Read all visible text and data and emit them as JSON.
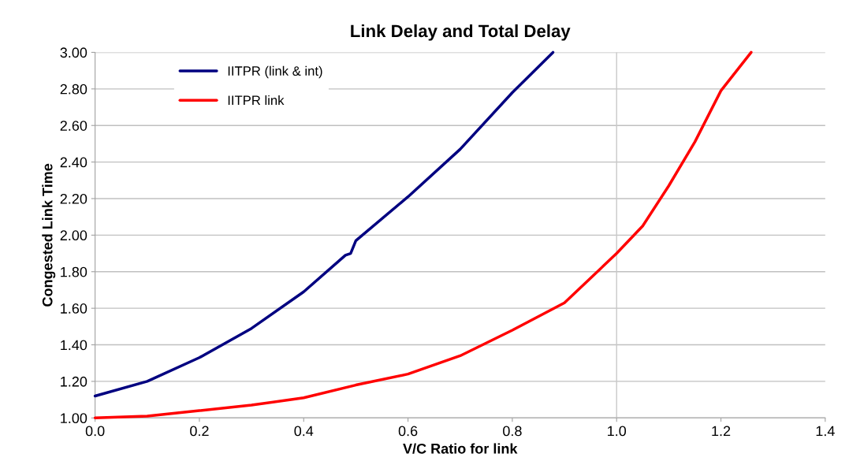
{
  "chart_data": {
    "type": "line",
    "title": "Link Delay and Total Delay",
    "xlabel": "V/C Ratio for link",
    "ylabel": "Congested Link Time",
    "xlim": [
      0,
      1.4
    ],
    "xticks": [
      {
        "value": 0,
        "label": "0.0"
      },
      0.2,
      0.4,
      0.6,
      0.8,
      {
        "value": 1.0,
        "label": "1.0"
      },
      1.2,
      1.4
    ],
    "ylim": [
      1,
      3
    ],
    "yticks": [
      {
        "value": 1,
        "label": "1.00"
      },
      {
        "value": 1.2,
        "label": "1.20"
      },
      {
        "value": 1.4,
        "label": "1.40"
      },
      {
        "value": 1.6,
        "label": "1.60"
      },
      {
        "value": 1.8,
        "label": "1.80"
      },
      {
        "value": 2,
        "label": "2.00"
      },
      {
        "value": 2.2,
        "label": "2.20"
      },
      {
        "value": 2.4,
        "label": "2.40"
      },
      {
        "value": 2.6,
        "label": "2.60"
      },
      {
        "value": 2.8,
        "label": "2.80"
      },
      {
        "value": 3,
        "label": "3.00"
      }
    ],
    "grid": "y",
    "legend": "top left",
    "line_style": "solid",
    "ref_lines": [
      {
        "axis": "x",
        "value": 1.0,
        "color": "#c8c8c8"
      }
    ],
    "series": [
      {
        "name": "IITPR (link & int)",
        "color": "#000080",
        "x": [
          0,
          0.1,
          0.2,
          0.3,
          0.4,
          0.48,
          0.49,
          0.5,
          0.6,
          0.7,
          0.8,
          0.878
        ],
        "values": [
          1.12,
          1.2,
          1.33,
          1.49,
          1.69,
          1.89,
          1.9,
          1.97,
          2.21,
          2.47,
          2.78,
          3.0
        ]
      },
      {
        "name": "IITPR link",
        "color": "#ff0000",
        "x": [
          0,
          0.1,
          0.2,
          0.3,
          0.4,
          0.5,
          0.6,
          0.7,
          0.8,
          0.9,
          1.0,
          1.05,
          1.1,
          1.15,
          1.2,
          1.258
        ],
        "values": [
          1.0,
          1.01,
          1.04,
          1.07,
          1.11,
          1.18,
          1.24,
          1.34,
          1.48,
          1.63,
          1.9,
          2.05,
          2.27,
          2.51,
          2.79,
          3.0
        ]
      }
    ]
  }
}
